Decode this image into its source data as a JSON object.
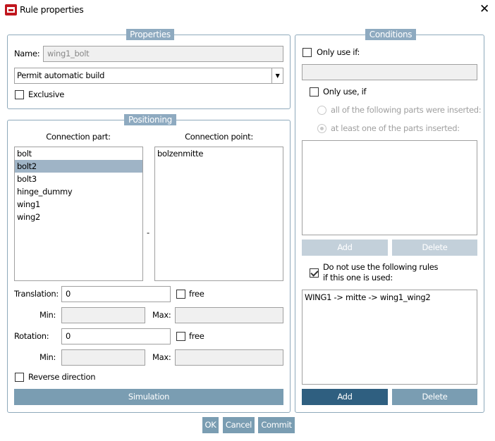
{
  "window": {
    "title": "Rule properties",
    "close_icon": "close-icon",
    "app_icon": "app-icon",
    "app_icon_color": "#c0161e"
  },
  "properties": {
    "legend": "Properties",
    "name_label": "Name:",
    "name_value": "wing1_bolt",
    "build_select": "Permit automatic build",
    "exclusive_label": "Exclusive",
    "exclusive_checked": false
  },
  "positioning": {
    "legend": "Positioning",
    "connection_part_label": "Connection part:",
    "connection_point_label": "Connection point:",
    "parts": [
      "bolt",
      "bolt2",
      "bolt3",
      "hinge_dummy",
      "wing1",
      "wing2"
    ],
    "selected_part": "bolt2",
    "points": [
      "bolzenmitte"
    ],
    "separator": "-",
    "translation_label": "Translation:",
    "translation_value": "0",
    "free_label": "free",
    "min_label": "Min:",
    "max_label": "Max:",
    "rotation_label": "Rotation:",
    "rotation_value": "0",
    "reverse_label": "Reverse direction",
    "simulation_label": "Simulation"
  },
  "conditions": {
    "legend": "Conditions",
    "only_use_if_label": "Only use if:",
    "only_use_if2_label": "Only use, if",
    "radio_all": "all of the following parts were inserted:",
    "radio_any": "at least one of the parts inserted:",
    "add_label": "Add",
    "delete_label": "Delete",
    "exclude_label_1": "Do not use the following rules",
    "exclude_label_2": "if this one is used:",
    "exclude_checked": true,
    "excluded_rules": [
      "WING1 -> mitte -> wing1_wing2"
    ]
  },
  "footer": {
    "ok": "OK",
    "cancel": "Cancel",
    "commit": "Commit"
  },
  "colors": {
    "accent": "#7a9db2",
    "primary": "#2f5f80",
    "selection": "#9fb4c6"
  }
}
